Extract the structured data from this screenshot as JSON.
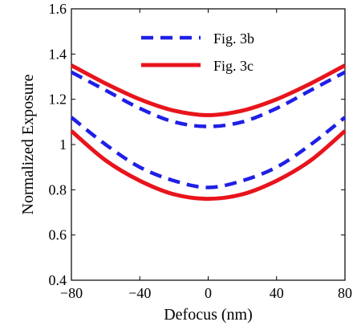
{
  "chart_data": {
    "type": "line",
    "title": "",
    "xlabel": "Defocus (nm)",
    "ylabel": "Normalized Exposure",
    "xlim": [
      -80,
      80
    ],
    "ylim": [
      0.4,
      1.6
    ],
    "xticks": [
      -80,
      -40,
      0,
      40,
      80
    ],
    "xtick_labels": [
      "−80",
      "−40",
      "0",
      "40",
      "80"
    ],
    "yticks": [
      0.4,
      0.6,
      0.8,
      1,
      1.2,
      1.4,
      1.6
    ],
    "ytick_labels": [
      "0.4",
      "0.6",
      "0.8",
      "1",
      "1.2",
      "1.4",
      "1.6"
    ],
    "grid": false,
    "legend_position": "top-right",
    "series": [
      {
        "name": "Fig. 3b",
        "style": "dashed",
        "color": "#1f1fe6",
        "lines": [
          {
            "x": [
              -80,
              -60,
              -40,
              -20,
              0,
              20,
              40,
              60,
              80
            ],
            "y": [
              1.32,
              1.24,
              1.16,
              1.1,
              1.08,
              1.1,
              1.16,
              1.24,
              1.32
            ]
          },
          {
            "x": [
              -80,
              -60,
              -40,
              -20,
              0,
              20,
              40,
              60,
              80
            ],
            "y": [
              1.12,
              1.0,
              0.9,
              0.84,
              0.81,
              0.84,
              0.9,
              1.0,
              1.12
            ]
          }
        ]
      },
      {
        "name": "Fig. 3c",
        "style": "solid",
        "color": "#e8141c",
        "lines": [
          {
            "x": [
              -80,
              -60,
              -40,
              -20,
              0,
              20,
              40,
              60,
              80
            ],
            "y": [
              1.35,
              1.27,
              1.2,
              1.15,
              1.13,
              1.15,
              1.2,
              1.27,
              1.35
            ]
          },
          {
            "x": [
              -80,
              -60,
              -40,
              -20,
              0,
              20,
              40,
              60,
              80
            ],
            "y": [
              1.06,
              0.93,
              0.84,
              0.78,
              0.76,
              0.78,
              0.84,
              0.93,
              1.06
            ]
          }
        ]
      }
    ]
  }
}
